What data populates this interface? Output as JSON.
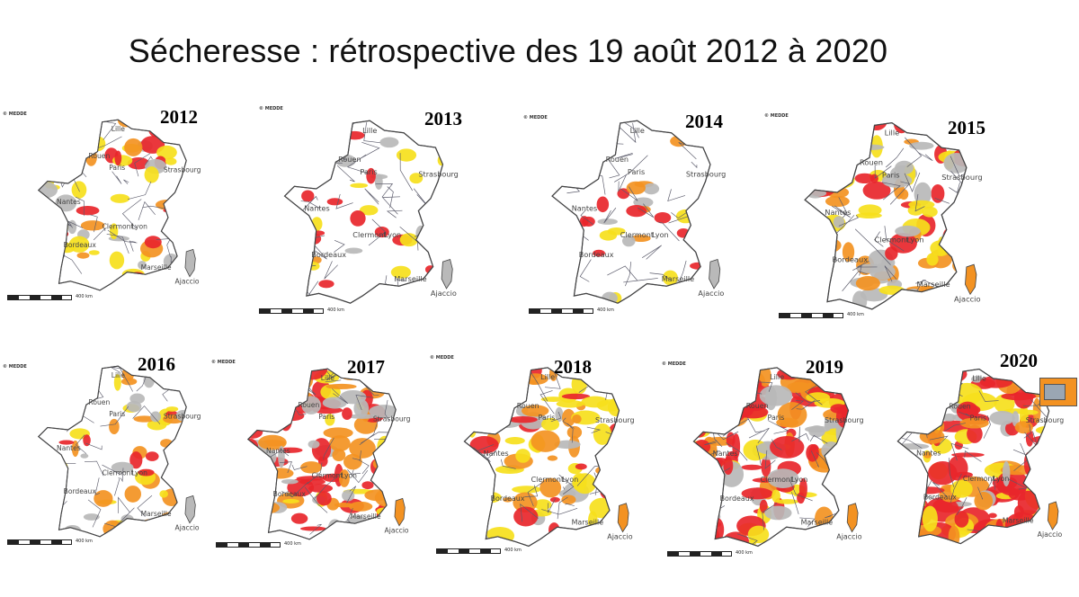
{
  "title": "Sécheresse : rétrospective des 19 août 2012 à 2020",
  "copyright": "© MEDDE",
  "scale_label": "400 km",
  "map_labels": {
    "lille": "Lille",
    "rouen": "Rouen",
    "paris": "Paris",
    "strasbourg": "Strasbourg",
    "nantes": "Nantes",
    "clermont": "Clermont",
    "lyon": "Lyon",
    "bordeaux": "Bordeaux",
    "marseille": "Marseille",
    "ajaccio": "Ajaccio"
  },
  "colors": {
    "vigilance": "#b9b9b9",
    "alerte": "#f6e01c",
    "alerte_renforcee": "#f39222",
    "crise": "#e8262b",
    "border": "#5a5a6a"
  },
  "maps": [
    {
      "year": "2012",
      "severity": 0.35
    },
    {
      "year": "2013",
      "severity": 0.12
    },
    {
      "year": "2014",
      "severity": 0.1
    },
    {
      "year": "2015",
      "severity": 0.55
    },
    {
      "year": "2016",
      "severity": 0.28
    },
    {
      "year": "2017",
      "severity": 0.7
    },
    {
      "year": "2018",
      "severity": 0.55
    },
    {
      "year": "2019",
      "severity": 0.82
    },
    {
      "year": "2020",
      "severity": 0.92
    }
  ]
}
